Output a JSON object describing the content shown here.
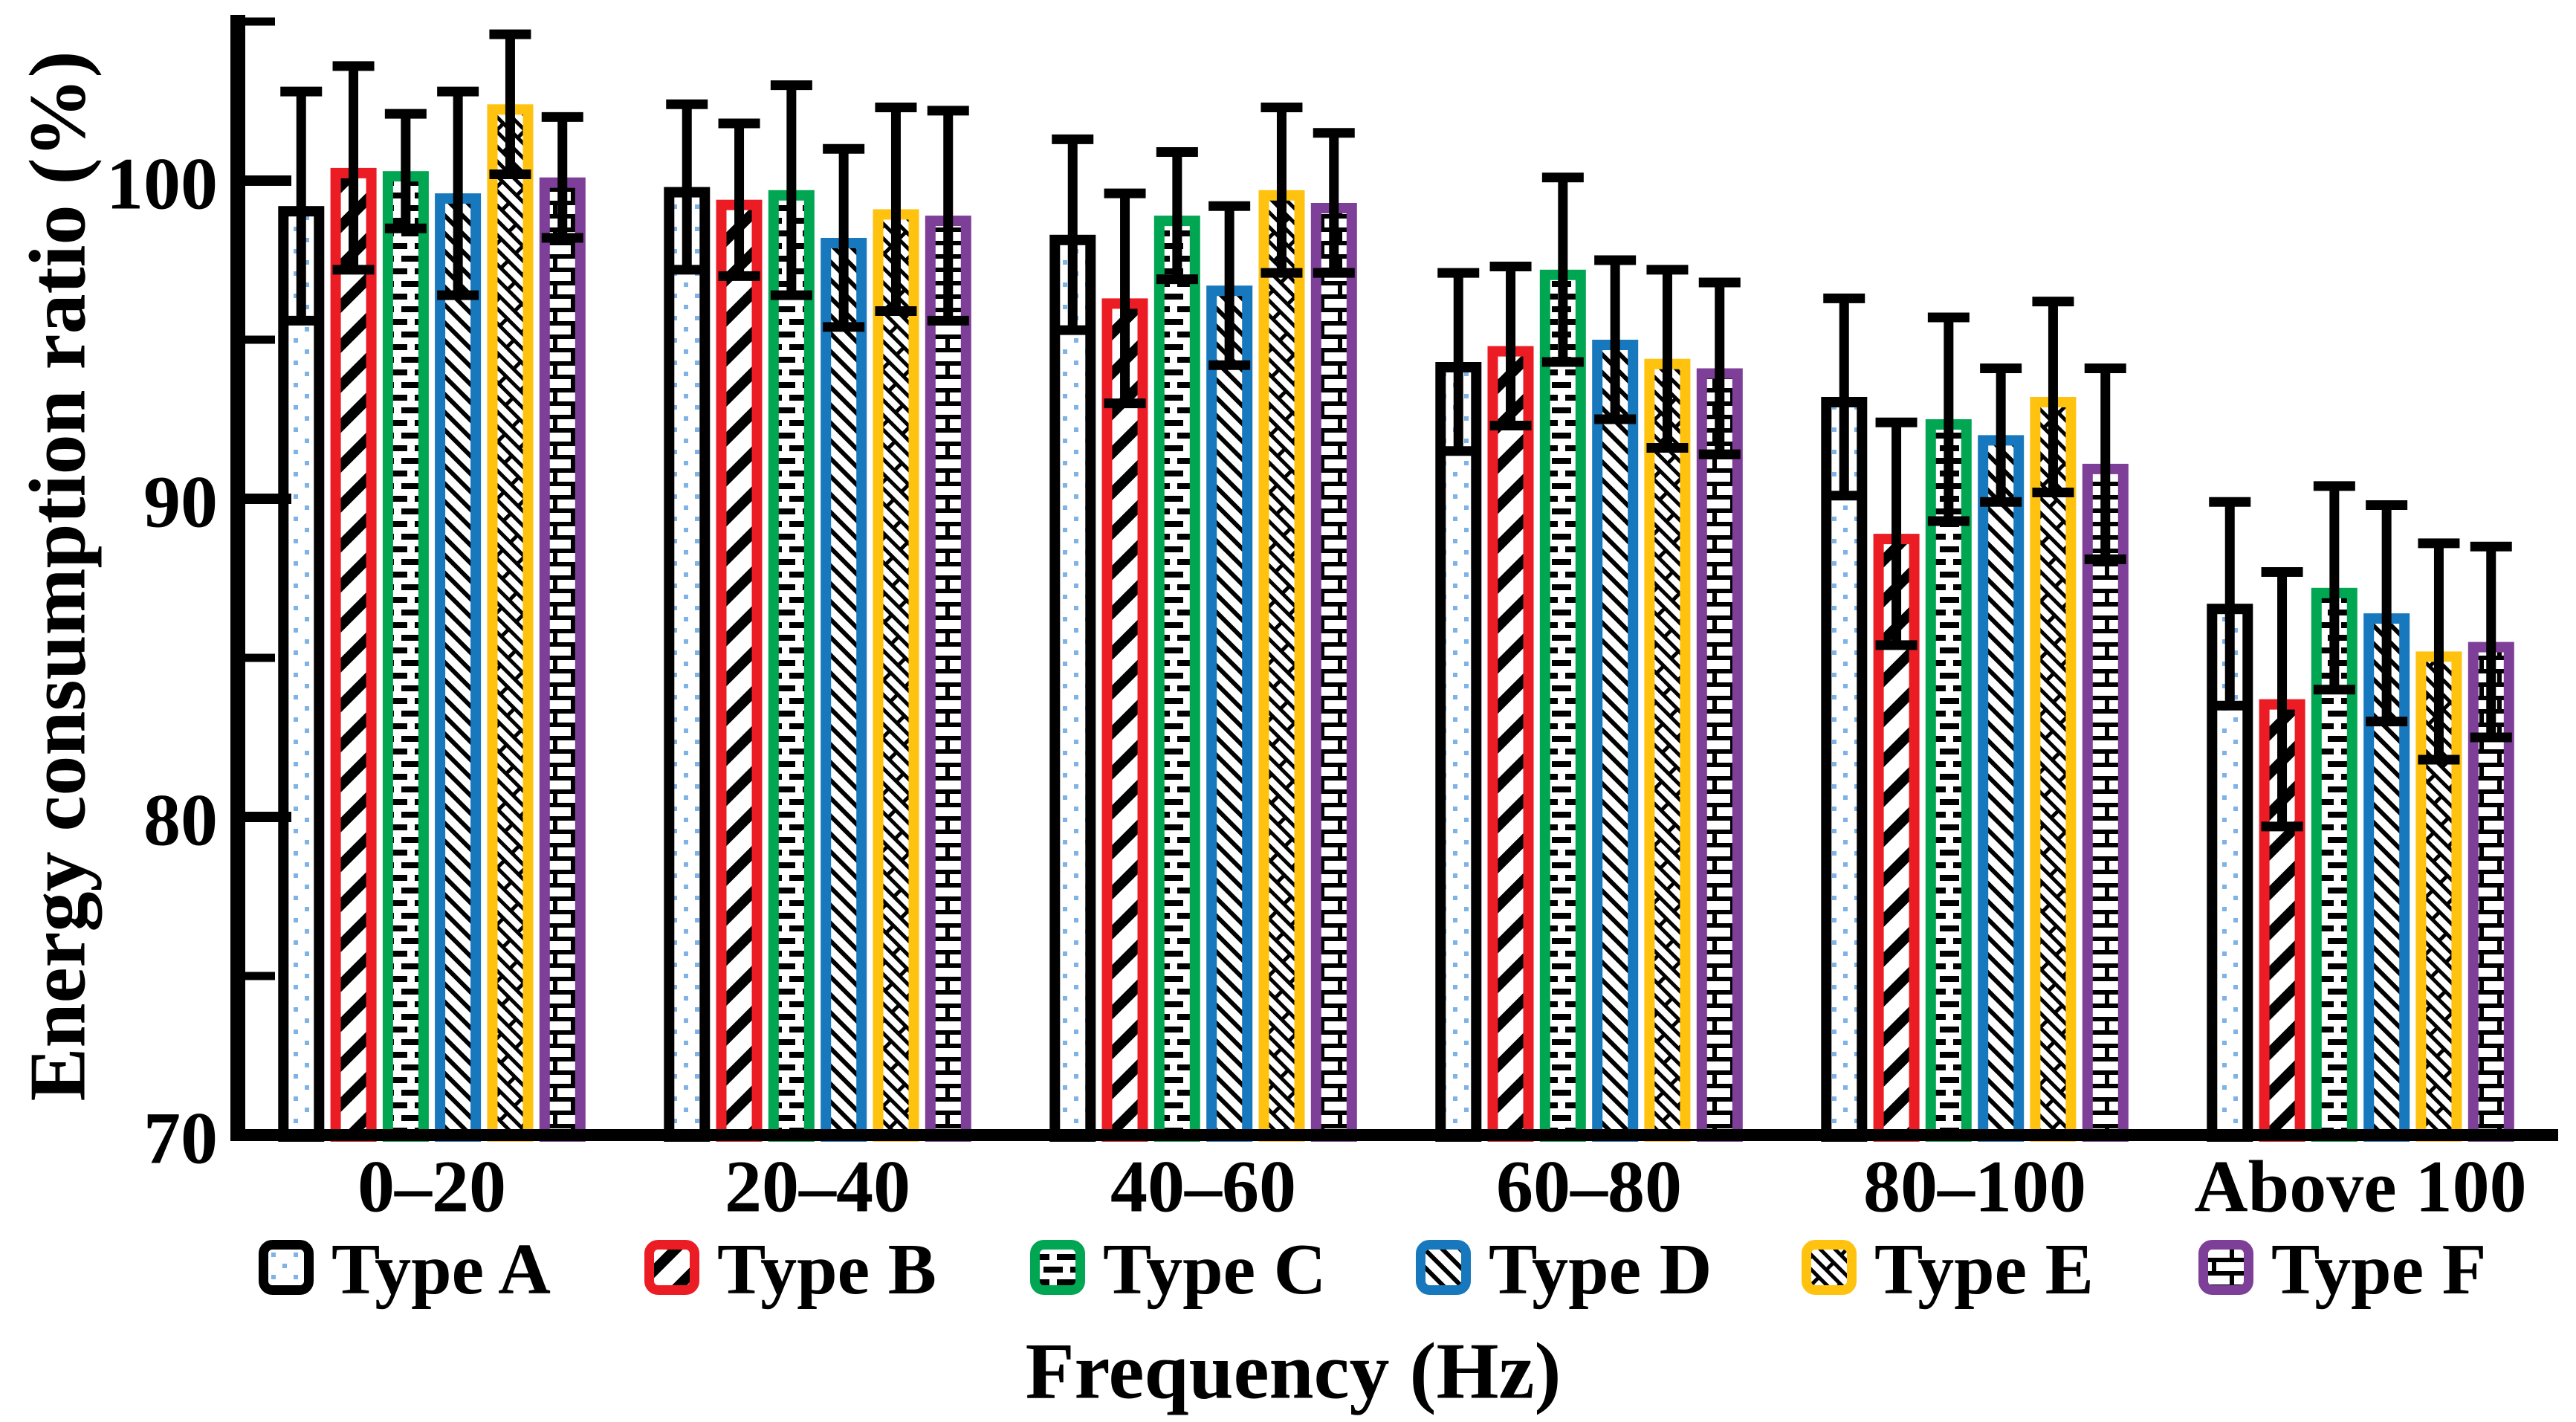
{
  "figure": {
    "background": "#ffffff",
    "ink_color": "#000000"
  },
  "chart_data": {
    "type": "bar",
    "title": "",
    "xlabel": "Frequency (Hz)",
    "ylabel": "Energy consumption ratio (%)",
    "categories": [
      "0–20",
      "20–40",
      "40–60",
      "60–80",
      "80–100",
      "Above 100"
    ],
    "ylim": [
      70,
      105
    ],
    "ytick_labels": [
      "100",
      "90",
      "80",
      "70"
    ],
    "yticks_major": [
      100,
      90,
      80,
      70
    ],
    "yticks_minor": [
      105,
      95,
      85,
      75
    ],
    "grid": false,
    "error_bars": true,
    "legend_position": "bottom",
    "series": [
      {
        "name": "Type A",
        "color": "#000000",
        "pattern": "dots",
        "pattern_accent": "#7fb2e5",
        "values": [
          99.2,
          99.8,
          98.3,
          94.3,
          93.2,
          86.7
        ],
        "errors": [
          3.6,
          2.6,
          3.0,
          2.8,
          3.1,
          3.2
        ]
      },
      {
        "name": "Type B",
        "color": "#ec1c24",
        "pattern": "diag-forward",
        "pattern_accent": "#000000",
        "values": [
          100.4,
          99.4,
          96.3,
          94.8,
          88.9,
          83.7
        ],
        "errors": [
          3.2,
          2.4,
          3.3,
          2.5,
          3.5,
          4.0
        ]
      },
      {
        "name": "Type C",
        "color": "#00a651",
        "pattern": "dashes",
        "pattern_accent": "#000000",
        "values": [
          100.3,
          99.7,
          98.9,
          97.2,
          92.5,
          87.2
        ],
        "errors": [
          1.8,
          3.3,
          2.0,
          2.9,
          3.2,
          3.2
        ]
      },
      {
        "name": "Type D",
        "color": "#1778be",
        "pattern": "diag-back",
        "pattern_accent": "#000000",
        "values": [
          99.6,
          98.2,
          96.7,
          95.0,
          92.0,
          86.4
        ],
        "errors": [
          3.2,
          2.8,
          2.5,
          2.5,
          2.1,
          3.4
        ]
      },
      {
        "name": "Type E",
        "color": "#ffc20e",
        "pattern": "diag-brick",
        "pattern_accent": "#000000",
        "values": [
          102.4,
          99.1,
          99.7,
          94.4,
          93.2,
          85.2
        ],
        "errors": [
          2.2,
          3.2,
          2.6,
          2.8,
          3.0,
          3.4
        ]
      },
      {
        "name": "Type F",
        "color": "#7e3f98",
        "pattern": "brick",
        "pattern_accent": "#000000",
        "values": [
          100.1,
          98.9,
          99.3,
          94.1,
          91.1,
          85.5
        ],
        "errors": [
          1.9,
          3.3,
          2.2,
          2.7,
          3.0,
          3.0
        ]
      }
    ]
  }
}
